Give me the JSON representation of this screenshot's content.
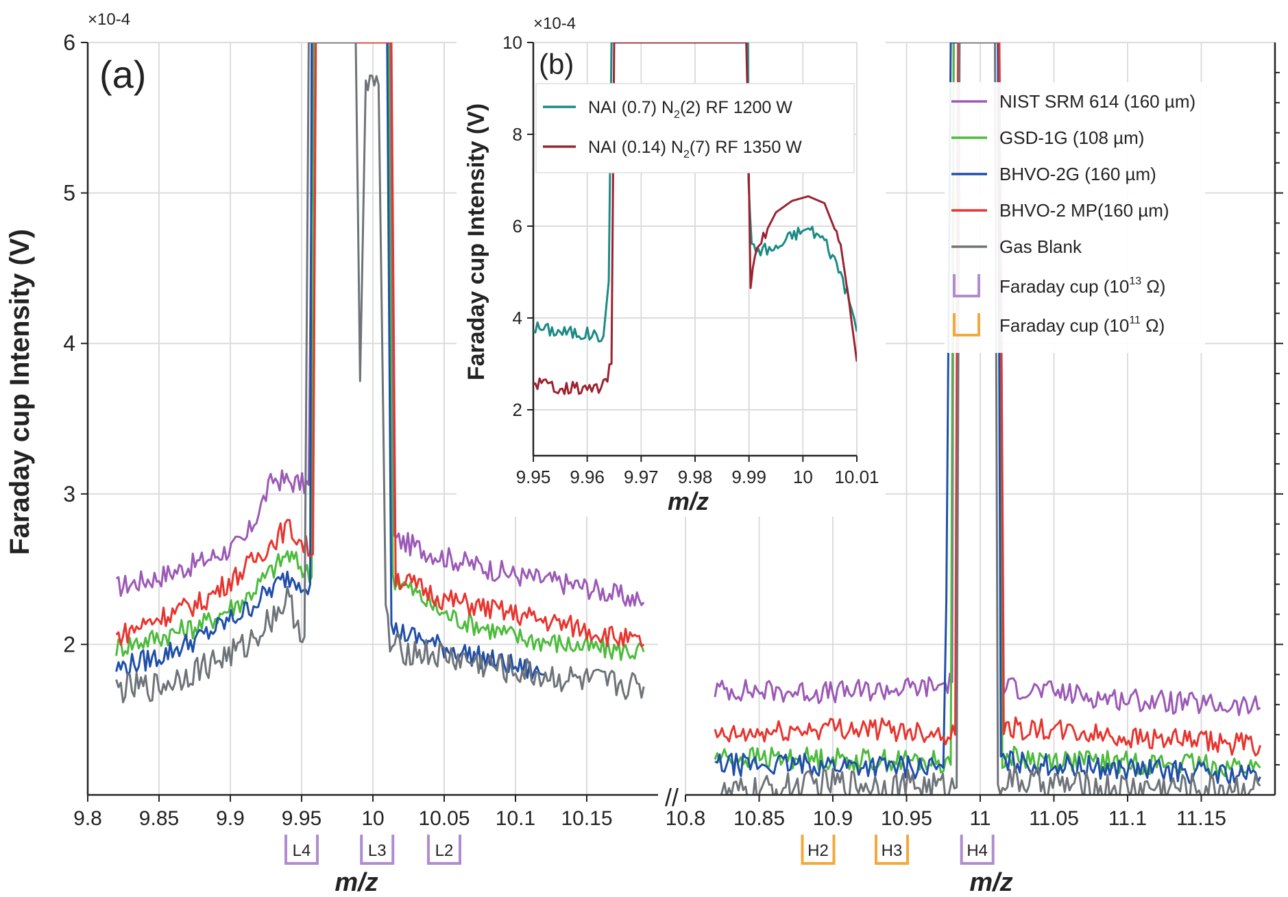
{
  "colors": {
    "nist": "#9b59b6",
    "gsd": "#4cbb3c",
    "bhvo2g": "#1f4ea8",
    "bhvo2mp": "#e8342e",
    "gas": "#6e7378",
    "teal": "#1a8a85",
    "darkred": "#9b2230",
    "cup_purple": "#b08ccf",
    "cup_orange": "#f2a93b",
    "grid": "#dcdcdc"
  },
  "panel_a": {
    "label": "(a)",
    "exponent": "×10-4",
    "ylabel": "Faraday cup Intensity (V)",
    "xlabel": "m/z",
    "break_mark": "//"
  },
  "panel_b": {
    "label": "(b)",
    "exponent": "×10-4",
    "ylabel": "Faraday cup Intensity (V)",
    "xlabel": "m/z"
  },
  "chart_data": [
    {
      "type": "line",
      "id": "panel-a-left",
      "x_range": [
        9.8,
        10.2
      ],
      "ylim": [
        1.0,
        6.0
      ],
      "y_scale_factor": "×10-4",
      "xticks": [
        "9.8",
        "9.85",
        "9.9",
        "9.95",
        "10",
        "10.05",
        "10.1",
        "10.15"
      ],
      "xtick_values": [
        9.8,
        9.85,
        9.9,
        9.95,
        10.0,
        10.05,
        10.1,
        10.15
      ],
      "yticks": [
        "2",
        "3",
        "4",
        "5",
        "6"
      ],
      "ytick_values": [
        2,
        3,
        4,
        5,
        6
      ],
      "grid": true,
      "series": [
        {
          "name": "NIST SRM 614 (160 µm)",
          "color_key": "nist",
          "points": [
            [
              9.82,
              2.38
            ],
            [
              9.85,
              2.45
            ],
            [
              9.88,
              2.55
            ],
            [
              9.91,
              2.68
            ],
            [
              9.93,
              3.1
            ],
            [
              9.955,
              3.06
            ],
            [
              9.958,
              6.0
            ],
            [
              10.012,
              6.0
            ],
            [
              10.015,
              2.7
            ],
            [
              10.05,
              2.58
            ],
            [
              10.1,
              2.46
            ],
            [
              10.15,
              2.38
            ],
            [
              10.19,
              2.28
            ]
          ]
        },
        {
          "name": "GSD-1G (108 µm)",
          "color_key": "gsd",
          "points": [
            [
              9.82,
              1.98
            ],
            [
              9.85,
              2.05
            ],
            [
              9.88,
              2.13
            ],
            [
              9.91,
              2.3
            ],
            [
              9.94,
              2.6
            ],
            [
              9.957,
              2.45
            ],
            [
              9.959,
              6.0
            ],
            [
              10.011,
              6.0
            ],
            [
              10.014,
              2.45
            ],
            [
              10.05,
              2.2
            ],
            [
              10.1,
              2.05
            ],
            [
              10.15,
              1.98
            ],
            [
              10.19,
              1.95
            ]
          ]
        },
        {
          "name": "BHVO-2G (160 µm)",
          "color_key": "bhvo2g",
          "points": [
            [
              9.82,
              1.84
            ],
            [
              9.85,
              1.92
            ],
            [
              9.88,
              2.05
            ],
            [
              9.91,
              2.22
            ],
            [
              9.94,
              2.45
            ],
            [
              9.956,
              2.4
            ],
            [
              9.957,
              6.0
            ],
            [
              10.01,
              6.0
            ],
            [
              10.013,
              2.1
            ],
            [
              10.05,
              1.98
            ],
            [
              10.1,
              1.85
            ],
            [
              10.12,
              1.8
            ]
          ]
        },
        {
          "name": "BHVO-2 MP(160 µm)",
          "color_key": "bhvo2mp",
          "points": [
            [
              9.82,
              2.05
            ],
            [
              9.85,
              2.18
            ],
            [
              9.88,
              2.28
            ],
            [
              9.91,
              2.5
            ],
            [
              9.94,
              2.78
            ],
            [
              9.958,
              2.6
            ],
            [
              9.96,
              6.0
            ],
            [
              10.013,
              6.0
            ],
            [
              10.016,
              2.45
            ],
            [
              10.05,
              2.3
            ],
            [
              10.1,
              2.2
            ],
            [
              10.15,
              2.1
            ],
            [
              10.19,
              2.0
            ]
          ]
        },
        {
          "name": "Gas Blank",
          "color_key": "gas",
          "points": [
            [
              9.82,
              1.7
            ],
            [
              9.85,
              1.72
            ],
            [
              9.88,
              1.85
            ],
            [
              9.91,
              1.98
            ],
            [
              9.94,
              2.3
            ],
            [
              9.952,
              2.05
            ],
            [
              9.955,
              6.0
            ],
            [
              9.988,
              6.0
            ],
            [
              9.991,
              3.75
            ],
            [
              9.995,
              5.7
            ],
            [
              10.004,
              5.72
            ],
            [
              10.009,
              2.3
            ],
            [
              10.012,
              1.98
            ],
            [
              10.05,
              1.92
            ],
            [
              10.1,
              1.82
            ],
            [
              10.15,
              1.75
            ],
            [
              10.19,
              1.72
            ]
          ]
        }
      ]
    },
    {
      "type": "line",
      "id": "panel-a-right",
      "x_range": [
        10.8,
        11.2
      ],
      "ylim": [
        1.0,
        6.0
      ],
      "xticks": [
        "10.8",
        "10.85",
        "10.9",
        "10.95",
        "11",
        "11.05",
        "11.1",
        "11.15"
      ],
      "xtick_values": [
        10.8,
        10.85,
        10.9,
        10.95,
        11.0,
        11.05,
        11.1,
        11.15
      ],
      "grid": true,
      "series": [
        {
          "name": "NIST SRM 614 (160 µm)",
          "color_key": "nist",
          "points": [
            [
              10.82,
              1.7
            ],
            [
              10.9,
              1.68
            ],
            [
              10.97,
              1.72
            ],
            [
              10.981,
              1.75
            ],
            [
              10.982,
              6.0
            ],
            [
              11.013,
              6.0
            ],
            [
              11.016,
              1.72
            ],
            [
              11.08,
              1.65
            ],
            [
              11.15,
              1.6
            ],
            [
              11.19,
              1.58
            ]
          ]
        },
        {
          "name": "GSD-1G (108 µm)",
          "color_key": "gsd",
          "points": [
            [
              10.82,
              1.25
            ],
            [
              10.9,
              1.24
            ],
            [
              10.97,
              1.22
            ],
            [
              10.98,
              1.2
            ],
            [
              10.982,
              6.0
            ],
            [
              11.012,
              6.0
            ],
            [
              11.015,
              1.25
            ],
            [
              11.08,
              1.22
            ],
            [
              11.15,
              1.2
            ],
            [
              11.19,
              1.18
            ]
          ]
        },
        {
          "name": "BHVO-2G (160 µm)",
          "color_key": "bhvo2g",
          "points": [
            [
              10.82,
              1.2
            ],
            [
              10.9,
              1.2
            ],
            [
              10.975,
              1.18
            ],
            [
              10.977,
              2.3
            ],
            [
              10.98,
              6.0
            ],
            [
              11.012,
              6.0
            ],
            [
              11.014,
              1.22
            ],
            [
              11.08,
              1.18
            ],
            [
              11.15,
              1.15
            ],
            [
              11.19,
              1.12
            ]
          ]
        },
        {
          "name": "BHVO-2 MP(160 µm)",
          "color_key": "bhvo2mp",
          "points": [
            [
              10.82,
              1.38
            ],
            [
              10.9,
              1.45
            ],
            [
              10.97,
              1.42
            ],
            [
              10.983,
              1.4
            ],
            [
              10.985,
              6.0
            ],
            [
              11.013,
              6.0
            ],
            [
              11.016,
              1.45
            ],
            [
              11.08,
              1.4
            ],
            [
              11.15,
              1.35
            ],
            [
              11.19,
              1.33
            ]
          ]
        },
        {
          "name": "Gas Blank",
          "color_key": "gas",
          "points": [
            [
              10.82,
              1.0
            ],
            [
              10.9,
              1.08
            ],
            [
              10.97,
              1.06
            ],
            [
              10.984,
              1.05
            ],
            [
              10.986,
              6.0
            ],
            [
              11.01,
              6.0
            ],
            [
              11.012,
              1.1
            ],
            [
              11.08,
              1.05
            ],
            [
              11.15,
              1.05
            ],
            [
              11.19,
              1.06
            ]
          ]
        }
      ]
    },
    {
      "type": "line",
      "id": "panel-b",
      "x_range": [
        9.95,
        10.01
      ],
      "ylim": [
        1.0,
        10.0
      ],
      "xticks": [
        "9.95",
        "9.96",
        "9.97",
        "9.98",
        "9.99",
        "10",
        "10.01"
      ],
      "xtick_values": [
        9.95,
        9.96,
        9.97,
        9.98,
        9.99,
        10.0,
        10.01
      ],
      "yticks": [
        "2",
        "4",
        "6",
        "8",
        "10"
      ],
      "ytick_values": [
        2,
        4,
        6,
        8,
        10
      ],
      "grid": true,
      "series": [
        {
          "name": "NAI (0.7) N2(2) RF 1200 W",
          "color_key": "teal",
          "points": [
            [
              9.95,
              3.8
            ],
            [
              9.955,
              3.7
            ],
            [
              9.96,
              3.65
            ],
            [
              9.963,
              3.6
            ],
            [
              9.964,
              4.8
            ],
            [
              9.9645,
              10.0
            ],
            [
              9.9898,
              10.0
            ],
            [
              9.9899,
              7.0
            ],
            [
              9.9905,
              5.5
            ],
            [
              9.995,
              5.5
            ],
            [
              9.998,
              5.8
            ],
            [
              10.001,
              5.95
            ],
            [
              10.004,
              5.7
            ],
            [
              10.007,
              5.0
            ],
            [
              10.009,
              4.2
            ],
            [
              10.01,
              3.7
            ]
          ]
        },
        {
          "name": "NAI (0.14) N2(7) RF 1350 W",
          "color_key": "darkred",
          "points": [
            [
              9.95,
              2.6
            ],
            [
              9.955,
              2.5
            ],
            [
              9.96,
              2.45
            ],
            [
              9.963,
              2.5
            ],
            [
              9.9645,
              3.0
            ],
            [
              9.965,
              10.0
            ],
            [
              9.9895,
              10.0
            ],
            [
              9.9897,
              9.0
            ],
            [
              9.9903,
              4.7
            ],
            [
              9.9915,
              5.5
            ],
            [
              9.995,
              6.3
            ],
            [
              9.998,
              6.55
            ],
            [
              10.001,
              6.65
            ],
            [
              10.004,
              6.5
            ],
            [
              10.007,
              5.6
            ],
            [
              10.009,
              4.0
            ],
            [
              10.01,
              3.05
            ]
          ]
        }
      ]
    }
  ],
  "legend_a": [
    {
      "label": "NIST SRM 614 (160 µm)",
      "color_key": "nist"
    },
    {
      "label": "GSD-1G (108 µm)",
      "color_key": "gsd"
    },
    {
      "label": "BHVO-2G (160 µm)",
      "color_key": "bhvo2g"
    },
    {
      "label": "BHVO-2 MP(160 µm)",
      "color_key": "bhvo2mp"
    },
    {
      "label": "Gas Blank",
      "color_key": "gas"
    }
  ],
  "legend_cups": [
    {
      "label": "Faraday cup (10",
      "sup": "13",
      "tail": " Ω)",
      "color_key": "cup_purple"
    },
    {
      "label": "Faraday cup (10",
      "sup": "11",
      "tail": " Ω)",
      "color_key": "cup_orange"
    }
  ],
  "legend_b": [
    {
      "label": "NAI (0.7) N",
      "sub": "2",
      "tail": "(2) RF 1200 W",
      "color_key": "teal"
    },
    {
      "label": "NAI (0.14) N",
      "sub": "2",
      "tail": "(7) RF 1350 W",
      "color_key": "darkred"
    }
  ],
  "cups": [
    {
      "label": "L4",
      "x": 9.95,
      "panel": "left",
      "color_key": "cup_purple"
    },
    {
      "label": "L3",
      "x": 10.003,
      "panel": "left",
      "color_key": "cup_purple"
    },
    {
      "label": "L2",
      "x": 10.05,
      "panel": "left",
      "color_key": "cup_purple"
    },
    {
      "label": "H2",
      "x": 10.89,
      "panel": "right",
      "color_key": "cup_orange"
    },
    {
      "label": "H3",
      "x": 10.94,
      "panel": "right",
      "color_key": "cup_orange"
    },
    {
      "label": "H4",
      "x": 10.998,
      "panel": "right",
      "color_key": "cup_purple"
    }
  ]
}
